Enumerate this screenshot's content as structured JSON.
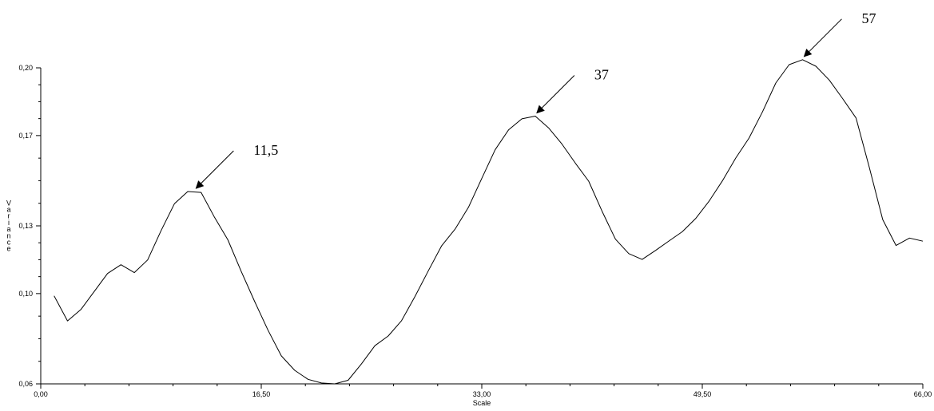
{
  "chart_data": {
    "type": "line",
    "title": "",
    "xlabel": "Scale",
    "ylabel": "Variance",
    "xlim": [
      0,
      66
    ],
    "ylim": [
      0.06,
      0.2
    ],
    "x_ticks": [
      0,
      16.5,
      33,
      49.5,
      66
    ],
    "x_tick_labels": [
      "0,00",
      "16,50",
      "33,00",
      "49,50",
      "66,00"
    ],
    "y_ticks": [
      0.06,
      0.1,
      0.13,
      0.17,
      0.2
    ],
    "y_tick_labels": [
      "0,06",
      "0,10",
      "0,13",
      "0,17",
      "0,20"
    ],
    "grid": false,
    "series": [
      {
        "x": [
          1,
          2,
          3,
          4,
          5,
          6,
          7,
          8,
          9,
          10,
          11,
          12,
          13,
          14,
          15,
          16,
          17,
          18,
          19,
          20,
          21,
          22,
          23,
          24,
          25,
          26,
          27,
          28,
          29,
          30,
          31,
          32,
          33,
          34,
          35,
          36,
          37,
          38,
          39,
          40,
          41,
          42,
          43,
          44,
          45,
          46,
          47,
          48,
          49,
          50,
          51,
          52,
          53,
          54,
          55,
          56,
          57,
          58,
          59,
          60,
          61,
          62,
          63,
          64,
          65,
          66
        ],
        "values": [
          0.099,
          0.0879,
          0.0929,
          0.1009,
          0.1089,
          0.1128,
          0.1093,
          0.1149,
          0.1278,
          0.1398,
          0.1452,
          0.1448,
          0.1338,
          0.1238,
          0.1098,
          0.0966,
          0.0838,
          0.0724,
          0.066,
          0.062,
          0.0604,
          0.06,
          0.0616,
          0.0689,
          0.0769,
          0.0812,
          0.088,
          0.0987,
          0.1101,
          0.1212,
          0.1285,
          0.1382,
          0.151,
          0.1637,
          0.1725,
          0.1774,
          0.1786,
          0.1734,
          0.1662,
          0.1578,
          0.1498,
          0.1365,
          0.1241,
          0.1177,
          0.1151,
          0.1191,
          0.1233,
          0.1274,
          0.1332,
          0.1409,
          0.1499,
          0.16,
          0.1689,
          0.1805,
          0.1933,
          0.2014,
          0.2036,
          0.2007,
          0.1946,
          0.1864,
          0.1778,
          0.1558,
          0.1328,
          0.1213,
          0.1246,
          0.1232
        ]
      }
    ],
    "annotations": [
      {
        "text": "11,5",
        "x": 11.5,
        "y": 0.1452
      },
      {
        "text": "37",
        "x": 37,
        "y": 0.1786
      },
      {
        "text": "57",
        "x": 57,
        "y": 0.2036
      }
    ]
  }
}
